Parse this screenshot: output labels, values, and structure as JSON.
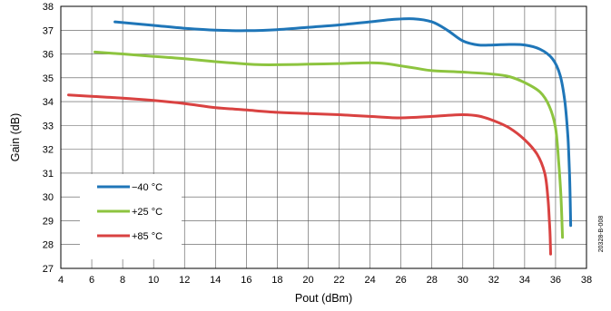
{
  "chart_data": {
    "type": "line",
    "xlabel": "Pout (dBm)",
    "ylabel": "Gain (dB)",
    "xlim": [
      4,
      38
    ],
    "ylim": [
      27,
      38
    ],
    "xticks": [
      4,
      6,
      8,
      10,
      12,
      14,
      16,
      18,
      20,
      22,
      24,
      26,
      28,
      30,
      32,
      34,
      36,
      38
    ],
    "yticks": [
      27,
      28,
      29,
      30,
      31,
      32,
      33,
      34,
      35,
      36,
      37,
      38
    ],
    "grid": true,
    "legend_position": "bottom-left",
    "figure_id": "20328-B-008",
    "series": [
      {
        "name": "−40 °C",
        "color": "#1f76b8",
        "points": [
          [
            7.5,
            37.35
          ],
          [
            10,
            37.2
          ],
          [
            12,
            37.08
          ],
          [
            14,
            37.0
          ],
          [
            16,
            36.98
          ],
          [
            18,
            37.02
          ],
          [
            20,
            37.12
          ],
          [
            22,
            37.22
          ],
          [
            24,
            37.35
          ],
          [
            25.5,
            37.45
          ],
          [
            26.8,
            37.48
          ],
          [
            28,
            37.35
          ],
          [
            29,
            37.0
          ],
          [
            30,
            36.55
          ],
          [
            31,
            36.38
          ],
          [
            32,
            36.38
          ],
          [
            33,
            36.4
          ],
          [
            34,
            36.38
          ],
          [
            35,
            36.2
          ],
          [
            35.8,
            35.8
          ],
          [
            36.3,
            35.1
          ],
          [
            36.6,
            34.0
          ],
          [
            36.8,
            32.5
          ],
          [
            36.9,
            31.0
          ],
          [
            36.95,
            29.8
          ],
          [
            36.98,
            28.8
          ]
        ]
      },
      {
        "name": "+25 °C",
        "color": "#8dc43f",
        "points": [
          [
            6.2,
            36.08
          ],
          [
            8,
            36.0
          ],
          [
            10,
            35.9
          ],
          [
            12,
            35.8
          ],
          [
            14,
            35.68
          ],
          [
            16,
            35.58
          ],
          [
            17,
            35.55
          ],
          [
            18,
            35.55
          ],
          [
            20,
            35.57
          ],
          [
            22,
            35.6
          ],
          [
            24,
            35.63
          ],
          [
            25,
            35.6
          ],
          [
            26,
            35.5
          ],
          [
            27,
            35.4
          ],
          [
            28,
            35.3
          ],
          [
            30,
            35.24
          ],
          [
            32,
            35.15
          ],
          [
            33,
            35.05
          ],
          [
            34,
            34.8
          ],
          [
            35,
            34.4
          ],
          [
            35.6,
            33.8
          ],
          [
            36.0,
            32.9
          ],
          [
            36.2,
            31.5
          ],
          [
            36.35,
            30.0
          ],
          [
            36.45,
            28.3
          ]
        ]
      },
      {
        "name": "+85 °C",
        "color": "#d94241",
        "points": [
          [
            4.5,
            34.28
          ],
          [
            6,
            34.22
          ],
          [
            8,
            34.15
          ],
          [
            10,
            34.05
          ],
          [
            12,
            33.92
          ],
          [
            14,
            33.75
          ],
          [
            16,
            33.65
          ],
          [
            18,
            33.55
          ],
          [
            20,
            33.5
          ],
          [
            22,
            33.45
          ],
          [
            24,
            33.38
          ],
          [
            26,
            33.32
          ],
          [
            28,
            33.38
          ],
          [
            29,
            33.42
          ],
          [
            30,
            33.45
          ],
          [
            31,
            33.4
          ],
          [
            32,
            33.2
          ],
          [
            33,
            32.9
          ],
          [
            34,
            32.4
          ],
          [
            34.8,
            31.8
          ],
          [
            35.3,
            31.0
          ],
          [
            35.5,
            30.0
          ],
          [
            35.6,
            29.0
          ],
          [
            35.65,
            28.3
          ],
          [
            35.68,
            27.6
          ]
        ]
      }
    ]
  }
}
